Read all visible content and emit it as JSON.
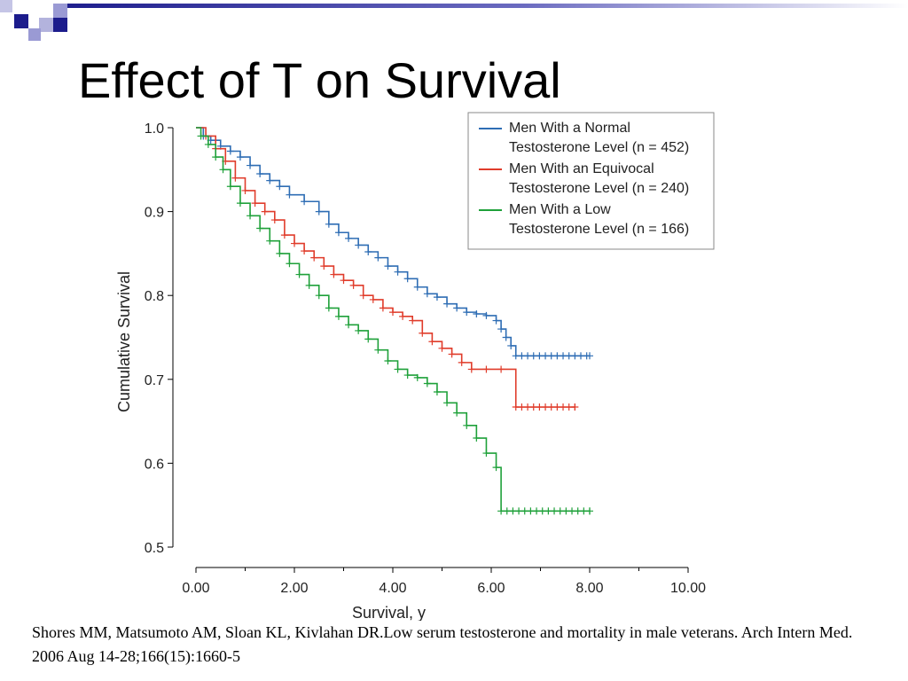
{
  "slide": {
    "title": "Effect of T on Survival",
    "citation": "Shores MM, Matsumoto AM, Sloan KL, Kivlahan DR.Low serum testosterone and mortality in male veterans. Arch Intern Med. 2006 Aug 14-28;166(15):1660-5",
    "accent_colors": [
      "#1c1c8c",
      "#8f8fd0"
    ]
  },
  "chart_data": {
    "type": "line",
    "xlabel": "Survival, y",
    "ylabel": "Cumulative Survival",
    "xlim": [
      0,
      10
    ],
    "ylim": [
      0.5,
      1.0
    ],
    "xticks": [
      "0.00",
      "2.00",
      "4.00",
      "6.00",
      "8.00",
      "10.00"
    ],
    "yticks": [
      "0.5",
      "0.6",
      "0.7",
      "0.8",
      "0.9",
      "1.0"
    ],
    "grid": false,
    "legend_position": "top-right",
    "step": true,
    "series": [
      {
        "name": "Men With a Normal Testosterone Level (n = 452)",
        "legend_lines": [
          "Men With a Normal",
          "Testosterone Level (n = 452)"
        ],
        "color": "#2e6db4",
        "x": [
          0,
          0.15,
          0.3,
          0.5,
          0.7,
          0.9,
          1.1,
          1.3,
          1.5,
          1.7,
          1.9,
          2.2,
          2.5,
          2.7,
          2.9,
          3.1,
          3.3,
          3.5,
          3.7,
          3.9,
          4.1,
          4.3,
          4.5,
          4.7,
          4.9,
          5.1,
          5.3,
          5.5,
          5.7,
          5.9,
          6.1,
          6.2,
          6.3,
          6.4,
          6.5,
          8.0
        ],
        "y": [
          1.0,
          0.99,
          0.985,
          0.978,
          0.972,
          0.965,
          0.955,
          0.945,
          0.937,
          0.93,
          0.92,
          0.912,
          0.9,
          0.885,
          0.875,
          0.868,
          0.86,
          0.852,
          0.845,
          0.835,
          0.828,
          0.82,
          0.81,
          0.802,
          0.798,
          0.79,
          0.785,
          0.78,
          0.778,
          0.776,
          0.77,
          0.76,
          0.75,
          0.74,
          0.728,
          0.728
        ]
      },
      {
        "name": "Men With an Equivocal Testosterone Level (n = 240)",
        "legend_lines": [
          "Men With an Equivocal",
          "Testosterone Level (n = 240)"
        ],
        "color": "#e03c2b",
        "x": [
          0,
          0.2,
          0.4,
          0.6,
          0.8,
          1.0,
          1.2,
          1.4,
          1.6,
          1.8,
          2.0,
          2.2,
          2.4,
          2.6,
          2.8,
          3.0,
          3.2,
          3.4,
          3.6,
          3.8,
          4.0,
          4.2,
          4.4,
          4.6,
          4.8,
          5.0,
          5.2,
          5.4,
          5.6,
          5.9,
          6.2,
          6.5,
          7.7
        ],
        "y": [
          1.0,
          0.99,
          0.975,
          0.96,
          0.94,
          0.925,
          0.91,
          0.9,
          0.89,
          0.872,
          0.862,
          0.853,
          0.845,
          0.835,
          0.825,
          0.818,
          0.812,
          0.8,
          0.795,
          0.785,
          0.78,
          0.775,
          0.77,
          0.755,
          0.745,
          0.737,
          0.73,
          0.72,
          0.712,
          0.712,
          0.712,
          0.667,
          0.667
        ]
      },
      {
        "name": "Men With a Low Testosterone Level (n = 166)",
        "legend_lines": [
          "Men With a Low",
          "Testosterone Level (n = 166)"
        ],
        "color": "#1fa13a",
        "x": [
          0,
          0.1,
          0.25,
          0.4,
          0.55,
          0.7,
          0.9,
          1.1,
          1.3,
          1.5,
          1.7,
          1.9,
          2.1,
          2.3,
          2.5,
          2.7,
          2.9,
          3.1,
          3.3,
          3.5,
          3.7,
          3.9,
          4.1,
          4.3,
          4.5,
          4.7,
          4.9,
          5.1,
          5.3,
          5.5,
          5.7,
          5.9,
          6.1,
          6.2,
          8.0
        ],
        "y": [
          1.0,
          0.99,
          0.98,
          0.965,
          0.95,
          0.93,
          0.91,
          0.895,
          0.88,
          0.865,
          0.85,
          0.838,
          0.825,
          0.812,
          0.8,
          0.785,
          0.775,
          0.765,
          0.758,
          0.748,
          0.735,
          0.722,
          0.712,
          0.705,
          0.702,
          0.695,
          0.685,
          0.672,
          0.66,
          0.645,
          0.63,
          0.612,
          0.595,
          0.543,
          0.543
        ]
      }
    ]
  }
}
